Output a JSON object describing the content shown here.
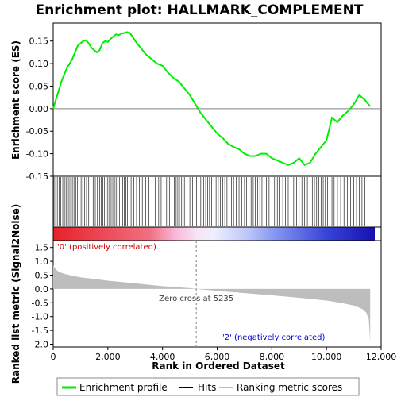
{
  "chart_data": {
    "type": "line",
    "title": "Enrichment plot: HALLMARK_COMPLEMENT",
    "xlabel": "Rank in Ordered Dataset",
    "x_ticks": [
      0,
      2000,
      4000,
      6000,
      8000,
      10000,
      12000
    ],
    "x_tick_labels": [
      "0",
      "2,000",
      "4,000",
      "6,000",
      "8,000",
      "10,000",
      "12,000"
    ],
    "xlim": [
      0,
      12000
    ],
    "n_genes": 11600,
    "es_panel": {
      "ylabel": "Enrichment score (ES)",
      "ylim": [
        -0.15,
        0.19
      ],
      "y_ticks": [
        -0.15,
        -0.1,
        -0.05,
        0.0,
        0.05,
        0.1,
        0.15
      ],
      "y_tick_labels": [
        "-0.15",
        "-0.10",
        "-0.05",
        "0.00",
        "0.05",
        "0.10",
        "0.15"
      ],
      "line_color": "#00ee00",
      "x": [
        0,
        100,
        200,
        300,
        400,
        500,
        600,
        700,
        800,
        900,
        1000,
        1100,
        1200,
        1300,
        1400,
        1500,
        1600,
        1700,
        1800,
        1900,
        2000,
        2100,
        2200,
        2300,
        2400,
        2500,
        2600,
        2700,
        2800,
        2900,
        3000,
        3200,
        3400,
        3600,
        3800,
        4000,
        4200,
        4400,
        4600,
        4800,
        5000,
        5200,
        5400,
        5600,
        5800,
        6000,
        6200,
        6400,
        6600,
        6800,
        7000,
        7200,
        7400,
        7600,
        7800,
        8000,
        8200,
        8400,
        8600,
        8800,
        9000,
        9200,
        9400,
        9600,
        9800,
        10000,
        10200,
        10400,
        10600,
        10800,
        11000,
        11200,
        11400,
        11600
      ],
      "y": [
        0.0,
        0.02,
        0.04,
        0.06,
        0.075,
        0.09,
        0.1,
        0.11,
        0.125,
        0.14,
        0.145,
        0.15,
        0.152,
        0.145,
        0.135,
        0.13,
        0.125,
        0.13,
        0.145,
        0.15,
        0.148,
        0.155,
        0.16,
        0.165,
        0.163,
        0.167,
        0.168,
        0.17,
        0.168,
        0.16,
        0.15,
        0.135,
        0.12,
        0.11,
        0.1,
        0.095,
        0.08,
        0.068,
        0.06,
        0.045,
        0.03,
        0.01,
        -0.01,
        -0.025,
        -0.04,
        -0.055,
        -0.065,
        -0.078,
        -0.085,
        -0.09,
        -0.1,
        -0.105,
        -0.105,
        -0.1,
        -0.1,
        -0.11,
        -0.115,
        -0.12,
        -0.125,
        -0.12,
        -0.11,
        -0.125,
        -0.12,
        -0.1,
        -0.085,
        -0.07,
        -0.02,
        -0.03,
        -0.015,
        -0.005,
        0.01,
        0.03,
        0.02,
        0.005
      ]
    },
    "hits": [
      30,
      90,
      150,
      220,
      280,
      350,
      410,
      470,
      520,
      580,
      640,
      700,
      760,
      820,
      880,
      950,
      1020,
      1080,
      1150,
      1220,
      1300,
      1380,
      1460,
      1540,
      1620,
      1700,
      1760,
      1820,
      1880,
      1940,
      2000,
      2060,
      2120,
      2180,
      2240,
      2300,
      2360,
      2420,
      2480,
      2540,
      2600,
      2660,
      2720,
      2780,
      2850,
      2950,
      3050,
      3150,
      3260,
      3380,
      3500,
      3620,
      3740,
      3860,
      3950,
      4050,
      4150,
      4250,
      4350,
      4430,
      4500,
      4560,
      4620,
      4700,
      4800,
      4900,
      5000,
      5100,
      5250,
      5400,
      5500,
      5580,
      5650,
      5720,
      5800,
      5880,
      5960,
      6040,
      6120,
      6200,
      6280,
      6360,
      6440,
      6520,
      6600,
      6700,
      6800,
      6900,
      7000,
      7080,
      7160,
      7240,
      7320,
      7400,
      7480,
      7560,
      7640,
      7720,
      7800,
      7900,
      8000,
      8100,
      8200,
      8300,
      8400,
      8500,
      8600,
      8700,
      8800,
      8900,
      9000,
      9100,
      9200,
      9300,
      9400,
      9480,
      9560,
      9640,
      9720,
      9800,
      9880,
      9960,
      10040,
      10120,
      10200,
      10280,
      10400,
      10520,
      10640,
      10760,
      10880,
      11000,
      11100,
      11200,
      11300,
      11400
    ],
    "metric_panel": {
      "ylabel": "Ranked list metric (Signal2Noise)",
      "ylim": [
        -2.1,
        1.75
      ],
      "y_ticks": [
        -2.0,
        -1.5,
        -1.0,
        -0.5,
        0.0,
        0.5,
        1.0,
        1.5
      ],
      "y_tick_labels": [
        "-2.0",
        "-1.5",
        "-1.0",
        "-0.5",
        "0.0",
        "0.5",
        "1.0",
        "1.5"
      ],
      "fill_color": "#bdbdbd",
      "x": [
        0,
        50,
        100,
        200,
        400,
        700,
        1000,
        1500,
        2000,
        3000,
        4000,
        5000,
        5235,
        6000,
        7000,
        8000,
        9000,
        10000,
        10500,
        11000,
        11300,
        11450,
        11550,
        11600
      ],
      "y": [
        0.85,
        0.78,
        0.7,
        0.62,
        0.55,
        0.48,
        0.42,
        0.36,
        0.3,
        0.2,
        0.1,
        0.03,
        0.0,
        -0.07,
        -0.15,
        -0.23,
        -0.32,
        -0.42,
        -0.5,
        -0.6,
        -0.72,
        -0.85,
        -1.1,
        -1.9
      ]
    },
    "zero_cross": 5235,
    "annotations": {
      "positive": "'0' (positively correlated)",
      "zero_cross": "Zero cross at 5235",
      "negative": "'2' (negatively correlated)"
    },
    "colors": {
      "positive_annotation": "#cc0000",
      "negative_annotation": "#0000cc",
      "hit_line": "#000000",
      "zero_line": "#808080"
    },
    "legend": {
      "placement": "bottom",
      "items": [
        {
          "label": "Enrichment profile",
          "color": "#00ee00"
        },
        {
          "label": "Hits",
          "color": "#000000"
        },
        {
          "label": "Ranking metric scores",
          "color": "#bdbdbd"
        }
      ]
    }
  }
}
